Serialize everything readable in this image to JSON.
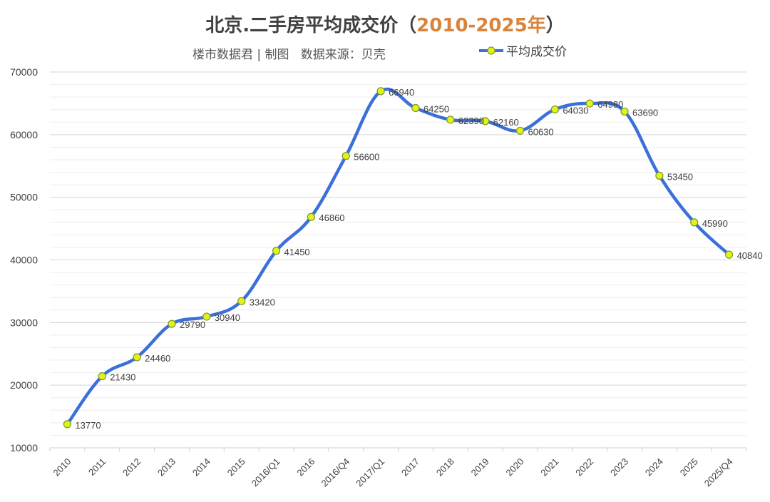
{
  "chart_data": {
    "type": "line",
    "title": "北京.二手房平均成交价",
    "title_open": "（",
    "title_years": "2010-2025年",
    "title_close": "）",
    "subtitle": "楼市数据君 | 制图   数据来源：贝壳",
    "legend": {
      "label": "平均成交价",
      "position": "top-right"
    },
    "categories": [
      "2010",
      "2011",
      "2012",
      "2013",
      "2014",
      "2015",
      "2016/Q1",
      "2016",
      "2016/Q4",
      "2017/Q1",
      "2017",
      "2018",
      "2019",
      "2020",
      "2021",
      "2022",
      "2023",
      "2024",
      "2025",
      "2025/Q4"
    ],
    "series": [
      {
        "name": "平均成交价",
        "values": [
          13770,
          21430,
          24460,
          29790,
          30940,
          33420,
          41450,
          46860,
          56600,
          66940,
          64250,
          62390,
          62160,
          60630,
          64030,
          64980,
          63690,
          53450,
          45990,
          40840
        ]
      }
    ],
    "ylim": [
      10000,
      70000
    ],
    "yticks": [
      "10000",
      "20000",
      "30000",
      "40000",
      "50000",
      "60000",
      "70000"
    ],
    "grid": true,
    "colors": {
      "line": "#3b6fd9",
      "marker_fill": "#e3f218",
      "marker_stroke": "#7a9a2a",
      "title_year": "#d9843a"
    }
  }
}
